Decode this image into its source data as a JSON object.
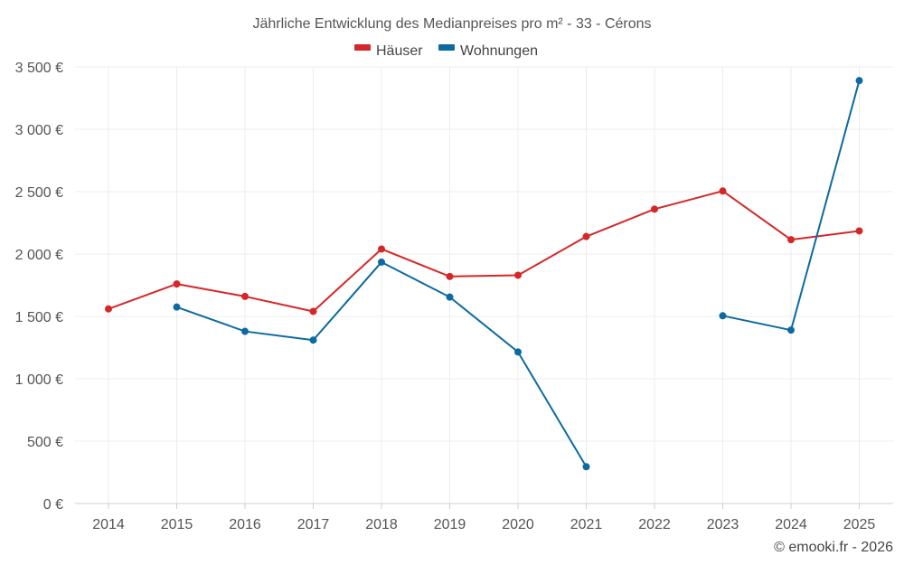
{
  "chart_data": {
    "type": "line",
    "title": "Jährliche Entwicklung des Medianpreises pro m² - 33 - Cérons",
    "xlabel": "",
    "ylabel": "",
    "x": [
      "2014",
      "2015",
      "2016",
      "2017",
      "2018",
      "2019",
      "2020",
      "2021",
      "2022",
      "2023",
      "2024",
      "2025"
    ],
    "ylim": [
      0,
      3500
    ],
    "yticks": [
      {
        "value": 0,
        "label": "0 €"
      },
      {
        "value": 500,
        "label": "500 €"
      },
      {
        "value": 1000,
        "label": "1 000 €"
      },
      {
        "value": 1500,
        "label": "1 500 €"
      },
      {
        "value": 2000,
        "label": "2 000 €"
      },
      {
        "value": 2500,
        "label": "2 500 €"
      },
      {
        "value": 3000,
        "label": "3 000 €"
      },
      {
        "value": 3500,
        "label": "3 500 €"
      }
    ],
    "grid": true,
    "legend_position": "top-center",
    "series": [
      {
        "name": "Häuser",
        "color": "#d62728",
        "values": [
          1560,
          1760,
          1660,
          1540,
          2040,
          1820,
          1830,
          2140,
          2360,
          2505,
          2115,
          2185
        ]
      },
      {
        "name": "Wohnungen",
        "color": "#0d6aa0",
        "values": [
          null,
          1575,
          1380,
          1310,
          1935,
          1655,
          1215,
          295,
          null,
          1505,
          1390,
          3390
        ]
      }
    ]
  },
  "credit": "© emooki.fr - 2026"
}
